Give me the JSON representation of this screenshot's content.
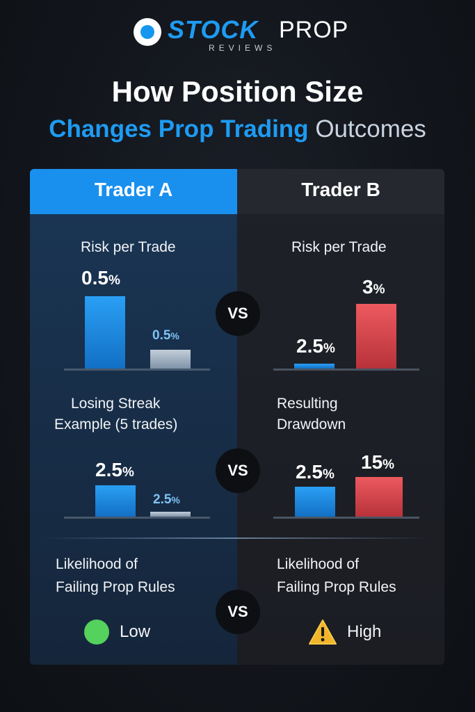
{
  "logo": {
    "word1": "STOCK",
    "word2": "PROP",
    "sub": "REVIEWS"
  },
  "title": {
    "line1": "How Position Size",
    "line2_accent": "Changes Prop Trading",
    "line2_rest": "Outcomes"
  },
  "columns": {
    "a": "Trader A",
    "b": "Trader B"
  },
  "vs_label": "VS",
  "rows": {
    "risk": {
      "label_a": "Risk per Trade",
      "label_b": "Risk per Trade"
    },
    "streak": {
      "label_a_1": "Losing Streak",
      "label_a_2": "Example (5 trades)",
      "label_b_1": "Resulting",
      "label_b_2": "Drawdown"
    },
    "likelihood": {
      "label_a_1": "Likelihood of",
      "label_a_2": "Failing Prop Rules",
      "label_b_1": "Likelihood of",
      "label_b_2": "Failing Prop Rules",
      "status_a": "Low",
      "status_b": "High"
    }
  },
  "colors": {
    "blue": "#1597f0",
    "red": "#e1454c",
    "light": "#aab8c8",
    "green": "#55d15d",
    "amber": "#f2b42a"
  },
  "chart_data": [
    {
      "type": "bar",
      "title": "Risk per Trade",
      "panel": "Trader A",
      "series": [
        {
          "values": [
            0.5,
            0.5
          ],
          "labels": [
            "0.5%",
            "0.5%"
          ]
        }
      ]
    },
    {
      "type": "bar",
      "title": "Risk per Trade",
      "panel": "Trader B",
      "series": [
        {
          "values": [
            2.5,
            3
          ],
          "labels": [
            "2.5%",
            "3%"
          ]
        }
      ]
    },
    {
      "type": "bar",
      "title": "Losing Streak Example (5 trades)",
      "panel": "Trader A",
      "series": [
        {
          "values": [
            2.5,
            2.5
          ],
          "labels": [
            "2.5%",
            "2.5%"
          ]
        }
      ]
    },
    {
      "type": "bar",
      "title": "Resulting Drawdown",
      "panel": "Trader B",
      "series": [
        {
          "values": [
            2.5,
            15
          ],
          "labels": [
            "2.5%",
            "15%"
          ]
        }
      ]
    }
  ]
}
